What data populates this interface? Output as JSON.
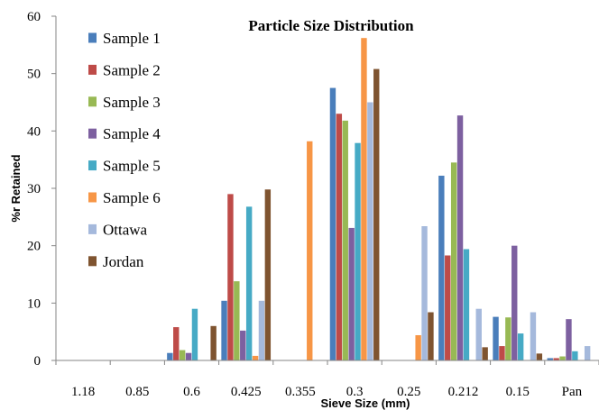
{
  "chart_data": {
    "type": "bar",
    "title": "Particle Size Distribution",
    "xlabel": "Sieve Size (mm)",
    "ylabel": "%r Retained",
    "ylim": [
      0,
      60
    ],
    "yticks": [
      0,
      10,
      20,
      30,
      40,
      50,
      60
    ],
    "categories": [
      "1.18",
      "0.85",
      "0.6",
      "0.425",
      "0.355",
      "0.3",
      "0.25",
      "0.212",
      "0.15",
      "Pan"
    ],
    "grid": false,
    "legend_position": "top-left",
    "series": [
      {
        "name": "Sample 1",
        "color": "#4A7EBB",
        "values": [
          0,
          0,
          1.3,
          10.4,
          0,
          47.5,
          0,
          32.2,
          7.6,
          0.4
        ]
      },
      {
        "name": "Sample 2",
        "color": "#BE4B48",
        "values": [
          0,
          0,
          5.8,
          29.0,
          0,
          43.0,
          0,
          18.3,
          2.5,
          0.4
        ]
      },
      {
        "name": "Sample 3",
        "color": "#98B954",
        "values": [
          0,
          0,
          1.8,
          13.8,
          0,
          41.8,
          0,
          34.5,
          7.5,
          0.7
        ]
      },
      {
        "name": "Sample 4",
        "color": "#7D60A0",
        "values": [
          0,
          0,
          1.3,
          5.2,
          0,
          23.1,
          0,
          42.7,
          20.0,
          7.2
        ]
      },
      {
        "name": "Sample 5",
        "color": "#46AAC5",
        "values": [
          0,
          0,
          9.0,
          26.8,
          0,
          37.9,
          0,
          19.4,
          4.7,
          1.6
        ]
      },
      {
        "name": "Sample 6",
        "color": "#F79646",
        "values": [
          0,
          0,
          0,
          0.8,
          38.2,
          56.2,
          4.4,
          0,
          0,
          0
        ]
      },
      {
        "name": "Ottawa",
        "color": "#A5B9DC",
        "values": [
          0,
          0,
          0,
          10.4,
          0,
          45.0,
          23.4,
          9.0,
          8.4,
          2.5
        ]
      },
      {
        "name": "Jordan",
        "color": "#7F5430",
        "values": [
          0,
          0,
          6.0,
          29.8,
          0,
          50.8,
          8.4,
          2.3,
          1.2,
          0
        ]
      }
    ]
  }
}
